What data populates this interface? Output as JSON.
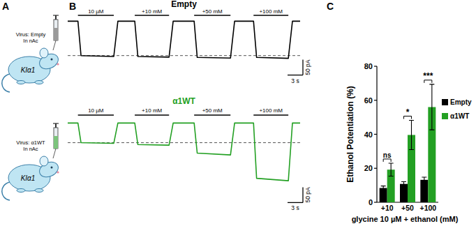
{
  "panel_labels": [
    "A",
    "B",
    "C"
  ],
  "panel_a": {
    "mice": [
      {
        "virus": "Virus: Empty",
        "site": "In nAc",
        "genotype": "KIα1"
      },
      {
        "virus": "Virus: α1WT",
        "site": "In nAc",
        "genotype": "KIα1"
      }
    ]
  },
  "chart_data": [
    {
      "type": "line",
      "title": "Empty",
      "color": "#000000",
      "x": [
        0,
        2.0,
        2.6,
        9.0,
        9.8,
        13.1,
        13.7,
        19.8,
        20.6,
        24.7,
        25.3,
        31.8,
        32.6,
        36.3,
        36.9,
        43.1,
        43.9,
        45.4
      ],
      "values": [
        0,
        0,
        -112,
        -115,
        0,
        0,
        -115,
        -117,
        0,
        0,
        -118,
        -120,
        0,
        0,
        -118,
        -121,
        0,
        0
      ],
      "xlim": [
        0,
        45.4
      ],
      "ylim": [
        -130,
        10
      ],
      "tick_labels": false,
      "applications": [
        {
          "label": "10 µM",
          "start": 2.0,
          "end": 9.0
        },
        {
          "label": "+10 mM",
          "start": 13.1,
          "end": 19.8
        },
        {
          "label": "+50 mM",
          "start": 24.7,
          "end": 31.8
        },
        {
          "label": "+100 mM",
          "start": 36.3,
          "end": 43.1
        }
      ],
      "scale_bar": {
        "y": {
          "value": 50,
          "label": "50 pA"
        },
        "x": {
          "value": 3,
          "label": "3 s"
        }
      }
    },
    {
      "type": "line",
      "title": "α1WT",
      "color": "#23a023",
      "x": [
        0,
        2.0,
        2.6,
        9.0,
        9.8,
        13.1,
        13.7,
        19.8,
        20.6,
        24.7,
        25.3,
        31.8,
        32.6,
        36.3,
        36.9,
        43.1,
        43.9,
        45.4
      ],
      "values": [
        0,
        0,
        -64,
        -66,
        0,
        0,
        -70,
        -72,
        0,
        0,
        -98,
        -104,
        0,
        0,
        -180,
        -188,
        0,
        0
      ],
      "xlim": [
        0,
        45.4
      ],
      "ylim": [
        -200,
        10
      ],
      "tick_labels": false,
      "applications": [
        {
          "label": "10 µM",
          "start": 2.0,
          "end": 9.0
        },
        {
          "label": "+10 mM",
          "start": 13.1,
          "end": 19.8
        },
        {
          "label": "+50 mM",
          "start": 24.7,
          "end": 31.8
        },
        {
          "label": "+100 mM",
          "start": 36.3,
          "end": 43.1
        }
      ],
      "scale_bar": {
        "y": {
          "value": 50,
          "label": "50 pA"
        },
        "x": {
          "value": 3,
          "label": "3 s"
        }
      }
    },
    {
      "type": "bar",
      "ylabel": "Ethanol Potentiation (%)",
      "xlabel": "glycine 10 µM + ethanol (mM)",
      "categories": [
        "+10",
        "+50",
        "+100"
      ],
      "series": [
        {
          "name": "Empty",
          "color": "#000000",
          "values": [
            8.4,
            10.8,
            13.2
          ],
          "errors": [
            1.2,
            1.3,
            1.6
          ]
        },
        {
          "name": "α1WT",
          "color": "#23a023",
          "values": [
            19.2,
            39.6,
            56
          ],
          "errors": [
            3.8,
            8.6,
            13.4
          ]
        }
      ],
      "ylim": [
        0,
        80
      ],
      "yticks": [
        0,
        20,
        40,
        60,
        80
      ],
      "legend": "right",
      "significance": [
        "ns",
        "*",
        "***"
      ]
    }
  ]
}
